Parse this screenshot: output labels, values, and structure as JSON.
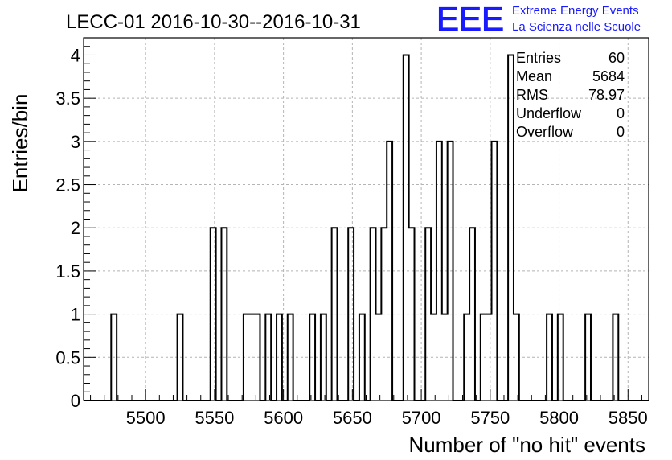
{
  "chart_data": {
    "type": "histogram",
    "title": "LECC-01 2016-10-30--2016-10-31",
    "xlabel": "Number of \"no hit\" events",
    "ylabel": "Entries/bin",
    "xlim": [
      5455,
      5865
    ],
    "ylim": [
      0,
      4.2
    ],
    "bin_width": 4,
    "x_ticks": [
      5500,
      5550,
      5600,
      5650,
      5700,
      5750,
      5800,
      5850
    ],
    "y_ticks": [
      0,
      0.5,
      1,
      1.5,
      2,
      2.5,
      3,
      3.5,
      4
    ],
    "y_tick_labels": [
      "0",
      "0.5",
      "1",
      "1.5",
      "2",
      "2.5",
      "3",
      "3.5",
      "4"
    ],
    "grid": true,
    "bins": [
      {
        "x": 5475,
        "y": 1
      },
      {
        "x": 5479,
        "y": 0
      },
      {
        "x": 5523,
        "y": 1
      },
      {
        "x": 5527,
        "y": 0
      },
      {
        "x": 5547,
        "y": 2
      },
      {
        "x": 5551,
        "y": 0
      },
      {
        "x": 5555,
        "y": 2
      },
      {
        "x": 5559,
        "y": 0
      },
      {
        "x": 5571,
        "y": 1
      },
      {
        "x": 5583,
        "y": 0
      },
      {
        "x": 5587,
        "y": 1
      },
      {
        "x": 5591,
        "y": 0
      },
      {
        "x": 5595,
        "y": 1
      },
      {
        "x": 5599,
        "y": 0
      },
      {
        "x": 5603,
        "y": 1
      },
      {
        "x": 5607,
        "y": 0
      },
      {
        "x": 5619,
        "y": 1
      },
      {
        "x": 5623,
        "y": 0
      },
      {
        "x": 5627,
        "y": 1
      },
      {
        "x": 5631,
        "y": 0
      },
      {
        "x": 5635,
        "y": 2
      },
      {
        "x": 5639,
        "y": 0
      },
      {
        "x": 5647,
        "y": 2
      },
      {
        "x": 5651,
        "y": 0
      },
      {
        "x": 5655,
        "y": 1
      },
      {
        "x": 5659,
        "y": 0
      },
      {
        "x": 5663,
        "y": 2
      },
      {
        "x": 5667,
        "y": 1
      },
      {
        "x": 5671,
        "y": 2
      },
      {
        "x": 5675,
        "y": 3
      },
      {
        "x": 5679,
        "y": 0
      },
      {
        "x": 5687,
        "y": 4
      },
      {
        "x": 5691,
        "y": 2
      },
      {
        "x": 5695,
        "y": 0
      },
      {
        "x": 5703,
        "y": 2
      },
      {
        "x": 5707,
        "y": 1
      },
      {
        "x": 5711,
        "y": 3
      },
      {
        "x": 5715,
        "y": 1
      },
      {
        "x": 5719,
        "y": 3
      },
      {
        "x": 5723,
        "y": 0
      },
      {
        "x": 5731,
        "y": 1
      },
      {
        "x": 5735,
        "y": 2
      },
      {
        "x": 5739,
        "y": 0
      },
      {
        "x": 5743,
        "y": 1
      },
      {
        "x": 5751,
        "y": 3
      },
      {
        "x": 5755,
        "y": 0
      },
      {
        "x": 5763,
        "y": 4
      },
      {
        "x": 5767,
        "y": 1
      },
      {
        "x": 5771,
        "y": 0
      },
      {
        "x": 5791,
        "y": 1
      },
      {
        "x": 5795,
        "y": 0
      },
      {
        "x": 5799,
        "y": 1
      },
      {
        "x": 5803,
        "y": 0
      },
      {
        "x": 5819,
        "y": 1
      },
      {
        "x": 5823,
        "y": 0
      },
      {
        "x": 5839,
        "y": 1
      },
      {
        "x": 5843,
        "y": 0
      }
    ],
    "stats": {
      "entries_label": "Entries",
      "entries": "60",
      "mean_label": "Mean",
      "mean": "5684",
      "rms_label": "RMS",
      "rms": "78.97",
      "underflow_label": "Underflow",
      "underflow": "0",
      "overflow_label": "Overflow",
      "overflow": "0"
    }
  },
  "branding": {
    "logo_text": "EEE",
    "line1": "Extreme Energy Events",
    "line2": "La Scienza nelle Scuole",
    "color": "#1a1aff"
  }
}
